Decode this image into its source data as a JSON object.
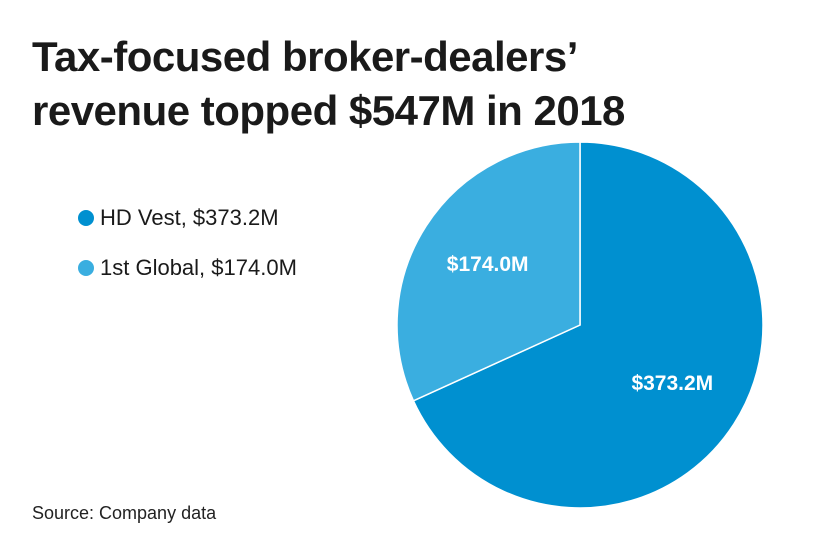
{
  "title_line1": "Tax-focused broker-dealers’",
  "title_line2": "revenue topped $547M in 2018",
  "source": "Source: Company data",
  "legend": [
    {
      "label": "HD Vest, $373.2M",
      "color": "#0090d0"
    },
    {
      "label": "1st Global, $174.0M",
      "color": "#3aaee0"
    }
  ],
  "chart_data": {
    "type": "pie",
    "title": "Tax-focused broker-dealers’ revenue topped $547M in 2018",
    "slices": [
      {
        "name": "HD Vest",
        "value": 373.2,
        "label": "$373.2M",
        "color": "#0090d0"
      },
      {
        "name": "1st Global",
        "value": 174.0,
        "label": "$174.0M",
        "color": "#3aaee0"
      }
    ],
    "legend_position": "left"
  }
}
